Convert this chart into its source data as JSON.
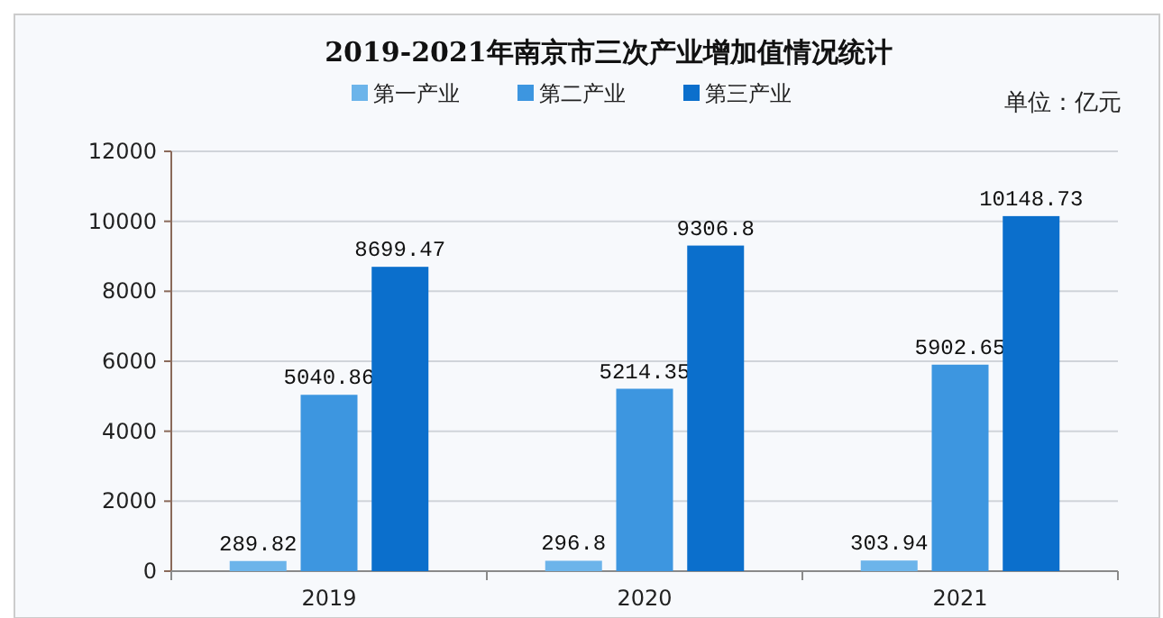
{
  "chart_data": {
    "type": "bar",
    "title": "2019-2021年南京市三次产业增加值情况统计",
    "annotations": [
      "单位：亿元"
    ],
    "categories": [
      "2019",
      "2020",
      "2021"
    ],
    "series": [
      {
        "name": "第一产业",
        "color": "#6cb4ea",
        "values": [
          289.82,
          296.8,
          303.94
        ]
      },
      {
        "name": "第二产业",
        "color": "#3d96e0",
        "values": [
          5040.86,
          5214.35,
          5902.65
        ]
      },
      {
        "name": "第三产业",
        "color": "#0b6fcc",
        "values": [
          8699.47,
          9306.8,
          10148.73
        ]
      }
    ],
    "ylim": [
      0,
      12000
    ],
    "yticks": [
      0,
      2000,
      4000,
      6000,
      8000,
      10000,
      12000
    ],
    "grid": "y",
    "legend": "top",
    "data_labels": true
  }
}
